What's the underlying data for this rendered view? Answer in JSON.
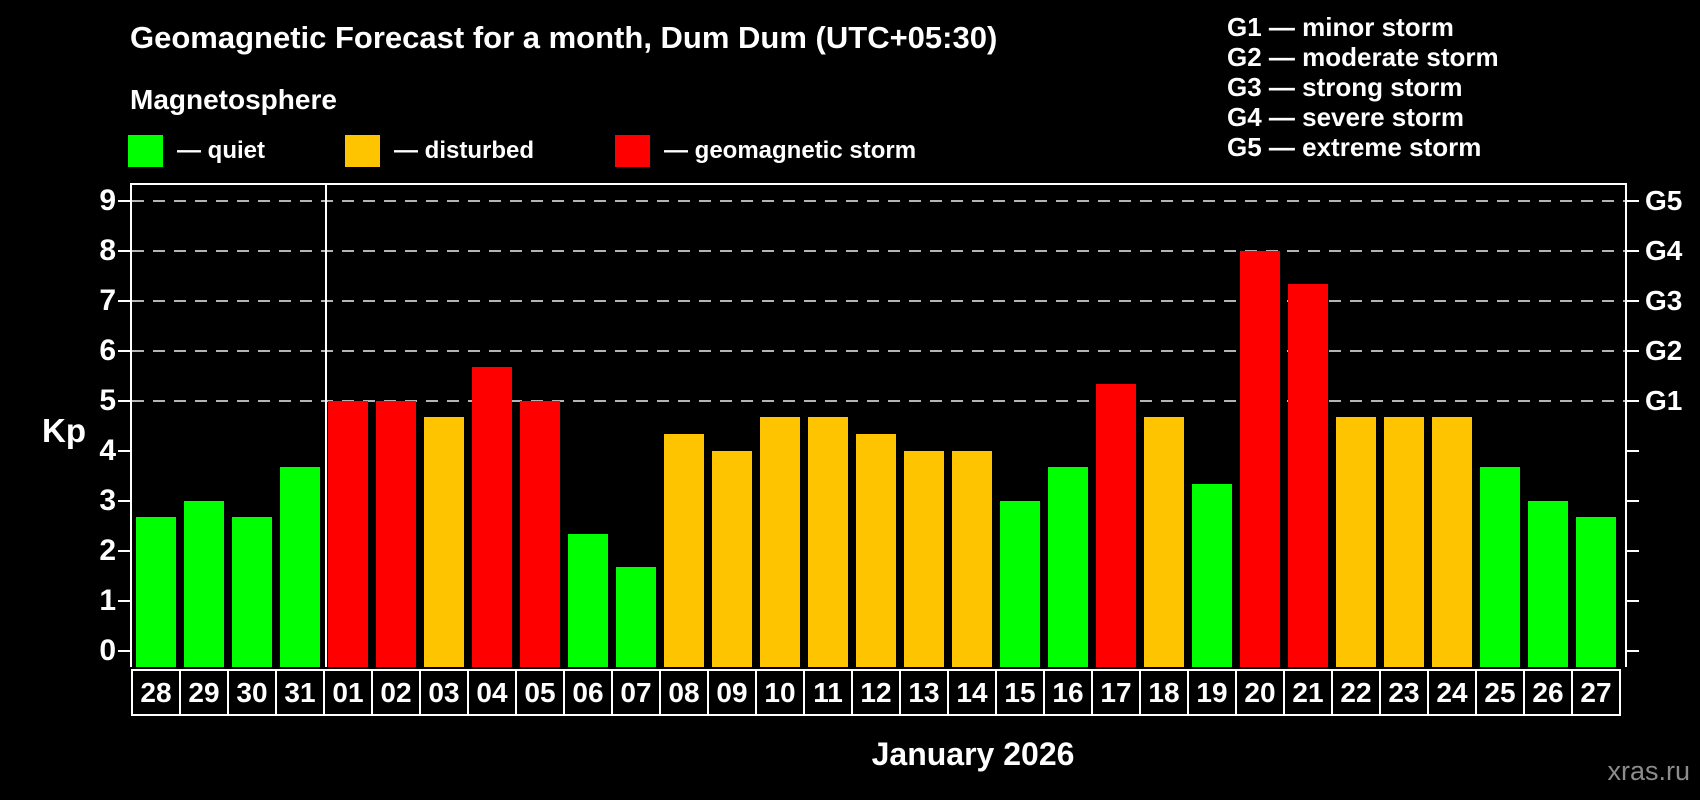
{
  "header": {
    "title": "Geomagnetic Forecast for a month, Dum Dum (UTC+05:30)",
    "subtitle": "Magnetosphere"
  },
  "legend": {
    "items": [
      {
        "key": "quiet",
        "label": "— quiet",
        "color": "#00ff00"
      },
      {
        "key": "disturbed",
        "label": "— disturbed",
        "color": "#ffc400"
      },
      {
        "key": "storm",
        "label": "— geomagnetic storm",
        "color": "#ff0000"
      }
    ]
  },
  "g_legend": {
    "lines": [
      "G1 — minor storm",
      "G2 — moderate storm",
      "G3 — strong storm",
      "G4 — severe storm",
      "G5 — extreme storm"
    ]
  },
  "chart_data": {
    "type": "bar",
    "title": "Geomagnetic Forecast for a month, Dum Dum (UTC+05:30)",
    "subtitle": "Magnetosphere",
    "ylabel": "Kp",
    "xlabel": "January 2026",
    "ylim": [
      -0.32,
      9.36
    ],
    "yticks": [
      0,
      1,
      2,
      3,
      4,
      5,
      6,
      7,
      8,
      9
    ],
    "gridlines": [
      5,
      6,
      7,
      8,
      9
    ],
    "grid": "dashed, only at G-storm levels 5-9",
    "legend_position": "top",
    "right_axis": [
      {
        "value": 5,
        "label": "G1"
      },
      {
        "value": 6,
        "label": "G2"
      },
      {
        "value": 7,
        "label": "G3"
      },
      {
        "value": 8,
        "label": "G4"
      },
      {
        "value": 9,
        "label": "G5"
      }
    ],
    "categories": [
      "28",
      "29",
      "30",
      "31",
      "01",
      "02",
      "03",
      "04",
      "05",
      "06",
      "07",
      "08",
      "09",
      "10",
      "11",
      "12",
      "13",
      "14",
      "15",
      "16",
      "17",
      "18",
      "19",
      "20",
      "21",
      "22",
      "23",
      "24",
      "25",
      "26",
      "27"
    ],
    "values": [
      2.67,
      3.0,
      2.67,
      3.67,
      5.0,
      5.0,
      4.67,
      5.67,
      5.0,
      2.33,
      1.67,
      4.33,
      4.0,
      4.67,
      4.67,
      4.33,
      4.0,
      4.0,
      3.0,
      3.67,
      5.33,
      4.67,
      3.33,
      8.0,
      7.33,
      4.67,
      4.67,
      4.67,
      3.67,
      3.0,
      2.67
    ],
    "statuses": [
      "quiet",
      "quiet",
      "quiet",
      "quiet",
      "storm",
      "storm",
      "disturbed",
      "storm",
      "storm",
      "quiet",
      "quiet",
      "disturbed",
      "disturbed",
      "disturbed",
      "disturbed",
      "disturbed",
      "disturbed",
      "disturbed",
      "quiet",
      "quiet",
      "storm",
      "disturbed",
      "quiet",
      "storm",
      "storm",
      "disturbed",
      "disturbed",
      "disturbed",
      "quiet",
      "quiet",
      "quiet"
    ],
    "status_colors": {
      "quiet": "#00ff00",
      "disturbed": "#ffc400",
      "storm": "#ff0000"
    },
    "month_separator_after": "31"
  },
  "footer": {
    "xlabel": "January 2026",
    "watermark": "xras.ru"
  }
}
